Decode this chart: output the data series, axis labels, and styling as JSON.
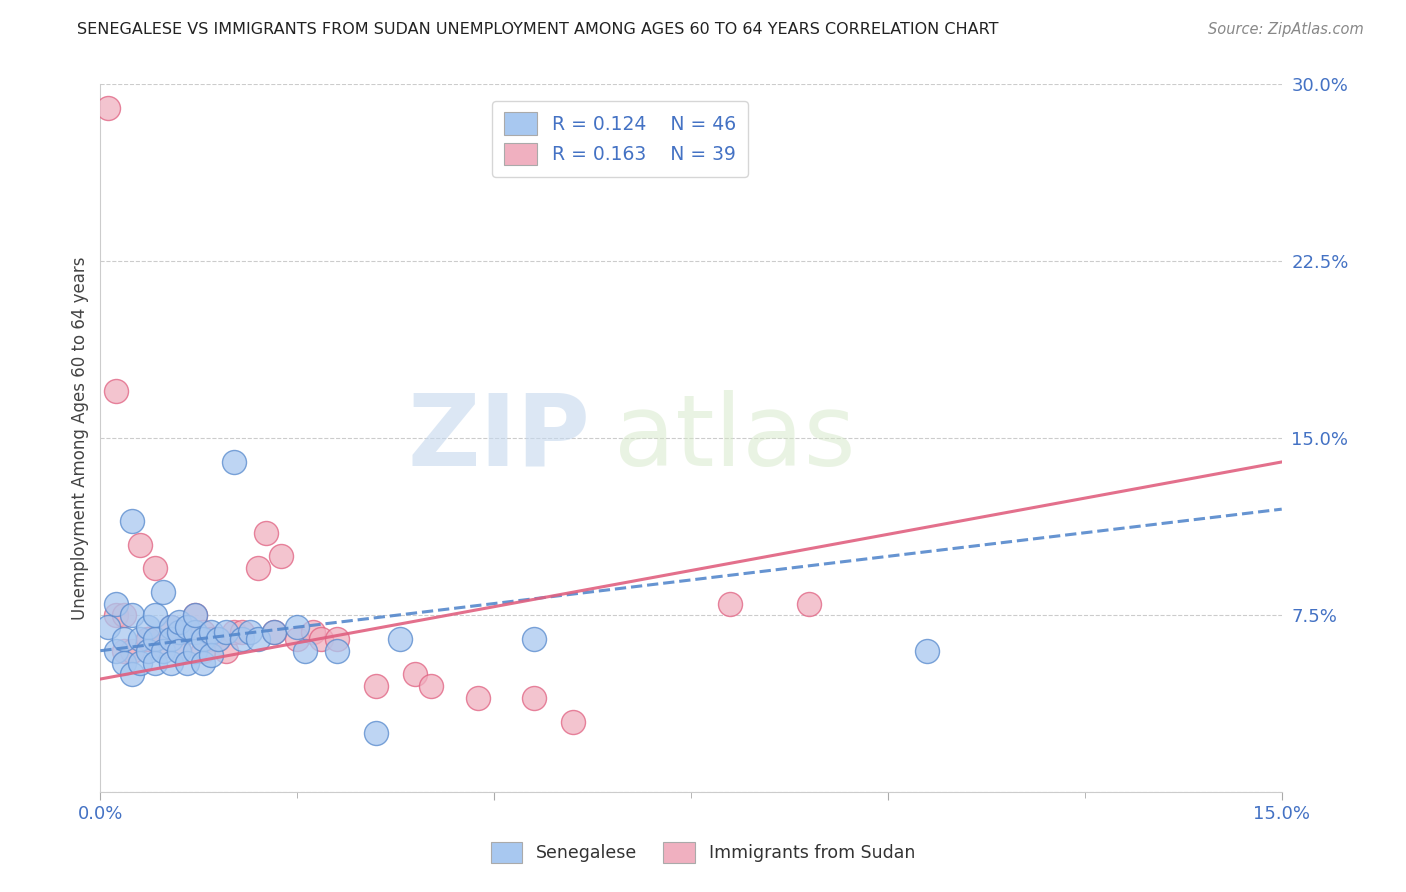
{
  "title": "SENEGALESE VS IMMIGRANTS FROM SUDAN UNEMPLOYMENT AMONG AGES 60 TO 64 YEARS CORRELATION CHART",
  "source": "Source: ZipAtlas.com",
  "ylabel": "Unemployment Among Ages 60 to 64 years",
  "xmin": 0.0,
  "xmax": 0.15,
  "ymin": 0.0,
  "ymax": 0.3,
  "xticks": [
    0.0,
    0.05,
    0.1,
    0.15
  ],
  "xtick_labels": [
    "0.0%",
    "",
    "",
    "15.0%"
  ],
  "yticks": [
    0.0,
    0.075,
    0.15,
    0.225,
    0.3
  ],
  "color_blue": "#a8c8f0",
  "color_pink": "#f0b0c0",
  "color_blue_line": "#5588cc",
  "color_pink_line": "#e06080",
  "color_blue_text": "#4472c4",
  "watermark_zip": "ZIP",
  "watermark_atlas": "atlas",
  "blue_x": [
    0.001,
    0.002,
    0.002,
    0.003,
    0.003,
    0.004,
    0.004,
    0.005,
    0.005,
    0.006,
    0.006,
    0.007,
    0.007,
    0.007,
    0.008,
    0.008,
    0.009,
    0.009,
    0.009,
    0.01,
    0.01,
    0.01,
    0.011,
    0.011,
    0.012,
    0.012,
    0.012,
    0.013,
    0.013,
    0.014,
    0.014,
    0.015,
    0.016,
    0.017,
    0.018,
    0.019,
    0.02,
    0.022,
    0.025,
    0.026,
    0.03,
    0.035,
    0.038,
    0.055,
    0.105,
    0.004
  ],
  "blue_y": [
    0.07,
    0.08,
    0.06,
    0.065,
    0.055,
    0.075,
    0.05,
    0.065,
    0.055,
    0.07,
    0.06,
    0.065,
    0.075,
    0.055,
    0.085,
    0.06,
    0.07,
    0.065,
    0.055,
    0.068,
    0.06,
    0.072,
    0.07,
    0.055,
    0.068,
    0.06,
    0.075,
    0.065,
    0.055,
    0.068,
    0.058,
    0.065,
    0.068,
    0.14,
    0.065,
    0.068,
    0.065,
    0.068,
    0.07,
    0.06,
    0.06,
    0.025,
    0.065,
    0.065,
    0.06,
    0.115
  ],
  "pink_x": [
    0.001,
    0.002,
    0.002,
    0.003,
    0.004,
    0.005,
    0.006,
    0.007,
    0.008,
    0.009,
    0.01,
    0.01,
    0.011,
    0.012,
    0.013,
    0.014,
    0.015,
    0.016,
    0.017,
    0.018,
    0.02,
    0.021,
    0.022,
    0.023,
    0.025,
    0.027,
    0.028,
    0.03,
    0.035,
    0.04,
    0.042,
    0.048,
    0.055,
    0.06,
    0.08,
    0.09,
    0.003,
    0.006,
    0.013
  ],
  "pink_y": [
    0.29,
    0.17,
    0.075,
    0.06,
    0.06,
    0.105,
    0.065,
    0.095,
    0.062,
    0.07,
    0.068,
    0.06,
    0.068,
    0.075,
    0.068,
    0.065,
    0.065,
    0.06,
    0.068,
    0.068,
    0.095,
    0.11,
    0.068,
    0.1,
    0.065,
    0.068,
    0.065,
    0.065,
    0.045,
    0.05,
    0.045,
    0.04,
    0.04,
    0.03,
    0.08,
    0.08,
    0.075,
    0.065,
    0.06
  ],
  "blue_line_x": [
    0.0,
    0.15
  ],
  "blue_line_y": [
    0.06,
    0.12
  ],
  "pink_line_x": [
    0.0,
    0.15
  ],
  "pink_line_y": [
    0.048,
    0.14
  ]
}
